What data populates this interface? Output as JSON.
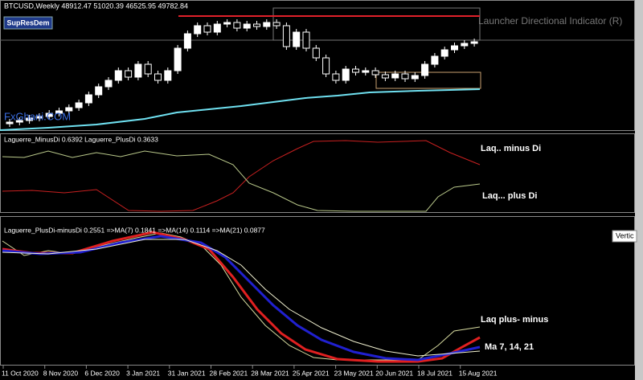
{
  "header": {
    "symbol_info": "BTCUSD,Weekly  48912.47 51020.39 46525.95 49782.84",
    "button": "SupResDem",
    "indicator_name": "Launcher Directional Indicator (R)",
    "watermark": "FxGhani.COM"
  },
  "panel_2": {
    "legend": "Laguerre_MinusDi 0.6392  Laguerre_PlusDi 0.3633",
    "label_minus": "Laq.. minus Di",
    "label_plus": "Laq... plus Di"
  },
  "panel_3": {
    "legend": "Laguerre_PlusDi-minusDi 0.2551  =>MA(7) 0.1841  =>MA(14) 0.1114  =>MA(21) 0.0877",
    "label_diff": "Laq  plus- minus",
    "label_ma": "Ma 7, 14, 21",
    "tooltip": "Vertic"
  },
  "time_axis": {
    "dates": [
      "11 Oct 2020",
      "8 Nov 2020",
      "6 Dec 2020",
      "3 Jan 2021",
      "31 Jan 2021",
      "28 Feb 2021",
      "28 Mar 2021",
      "25 Apr 2021",
      "23 May 2021",
      "20 Jun 2021",
      "18 Jul 2021",
      "15 Aug 2021"
    ]
  }
}
